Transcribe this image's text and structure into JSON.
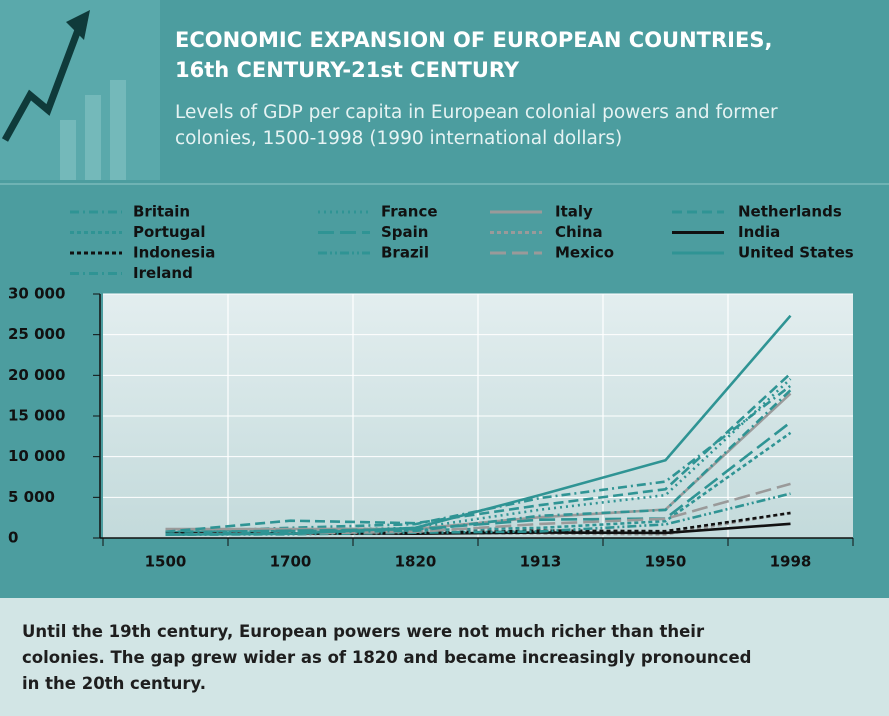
{
  "chart_data": {
    "type": "line",
    "title": [
      "ECONOMIC EXPANSION OF EUROPEAN COUNTRIES,",
      "16th CENTURY-21st CENTURY"
    ],
    "subtitle": [
      "Levels of GDP per capita in European colonial powers and former",
      "colonies, 1500-1998 (1990 international dollars)"
    ],
    "note": [
      "Until the 19th century, European powers were not much richer than their",
      "colonies. The gap grew wider as of 1820 and became increasingly pronounced",
      "in the 20th century."
    ],
    "categories": [
      "1500",
      "1700",
      "1820",
      "1913",
      "1950",
      "1998"
    ],
    "ylim": [
      0,
      30000
    ],
    "yticks": [
      {
        "value": 0,
        "label": "0"
      },
      {
        "value": 5000,
        "label": "5 000"
      },
      {
        "value": 10000,
        "label": "10 000"
      },
      {
        "value": 15000,
        "label": "15 000"
      },
      {
        "value": 20000,
        "label": "20 000"
      },
      {
        "value": 25000,
        "label": "25 000"
      },
      {
        "value": 30000,
        "label": "30 000"
      }
    ],
    "grid": true,
    "series": [
      {
        "name": "Britain",
        "color": "#2f9494",
        "style": "dash-dot",
        "values": [
          714,
          1250,
          1706,
          4921,
          6939,
          18714
        ]
      },
      {
        "name": "France",
        "color": "#2f9494",
        "style": "dot",
        "values": [
          727,
          986,
          1230,
          3485,
          5270,
          19558
        ]
      },
      {
        "name": "Italy",
        "color": "#9a9a9a",
        "style": "solid",
        "values": [
          1100,
          1100,
          1117,
          2564,
          3502,
          17759
        ]
      },
      {
        "name": "Netherlands",
        "color": "#2f9494",
        "style": "dash",
        "values": [
          761,
          2130,
          1821,
          4049,
          5996,
          20224
        ]
      },
      {
        "name": "Portugal",
        "color": "#2f9494",
        "style": "short-dash",
        "values": [
          632,
          854,
          963,
          1244,
          2069,
          12929
        ]
      },
      {
        "name": "Spain",
        "color": "#2f9494",
        "style": "long-dash",
        "values": [
          698,
          900,
          1063,
          2255,
          2397,
          14227
        ]
      },
      {
        "name": "China",
        "color": "#9a9a9a",
        "style": "short-dash",
        "values": [
          600,
          600,
          600,
          552,
          439,
          3117
        ]
      },
      {
        "name": "India",
        "color": "#111111",
        "style": "solid",
        "values": [
          550,
          550,
          533,
          673,
          619,
          1746
        ]
      },
      {
        "name": "Indonesia",
        "color": "#111111",
        "style": "short-dash",
        "values": [
          565,
          580,
          612,
          904,
          840,
          3070
        ]
      },
      {
        "name": "Brazil",
        "color": "#2f9494",
        "style": "dash-dot-dot",
        "values": [
          400,
          460,
          646,
          811,
          1672,
          5459
        ]
      },
      {
        "name": "Mexico",
        "color": "#9a9a9a",
        "style": "long-dash",
        "values": [
          425,
          568,
          759,
          1732,
          2365,
          6655
        ]
      },
      {
        "name": "United States",
        "color": "#2f9494",
        "style": "solid",
        "values": [
          400,
          527,
          1257,
          5301,
          9561,
          27331
        ]
      },
      {
        "name": "Ireland",
        "color": "#2f9494",
        "style": "dash-dot",
        "values": [
          526,
          715,
          877,
          2736,
          3446,
          18183
        ]
      }
    ]
  }
}
